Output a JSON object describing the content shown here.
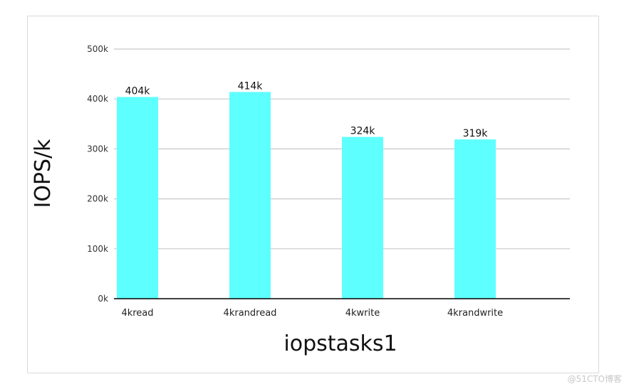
{
  "chart_data": {
    "type": "bar",
    "title": "",
    "xlabel": "iopstasks1",
    "ylabel": "IOPS/k",
    "categories": [
      "4kread",
      "4krandread",
      "4kwrite",
      "4krandwrite"
    ],
    "values": [
      404,
      414,
      324,
      319
    ],
    "data_labels": [
      "404k",
      "414k",
      "324k",
      "319k"
    ],
    "ylim": [
      0,
      500
    ],
    "yticks": [
      0,
      100,
      200,
      300,
      400,
      500
    ],
    "ytick_labels": [
      "0k",
      "100k",
      "200k",
      "300k",
      "400k",
      "500k"
    ],
    "grid": true,
    "legend": "none",
    "bar_color": "#5effff",
    "grid_color": "#c8c8c8",
    "axis_color": "#000000"
  },
  "watermark": "@51CTO博客"
}
